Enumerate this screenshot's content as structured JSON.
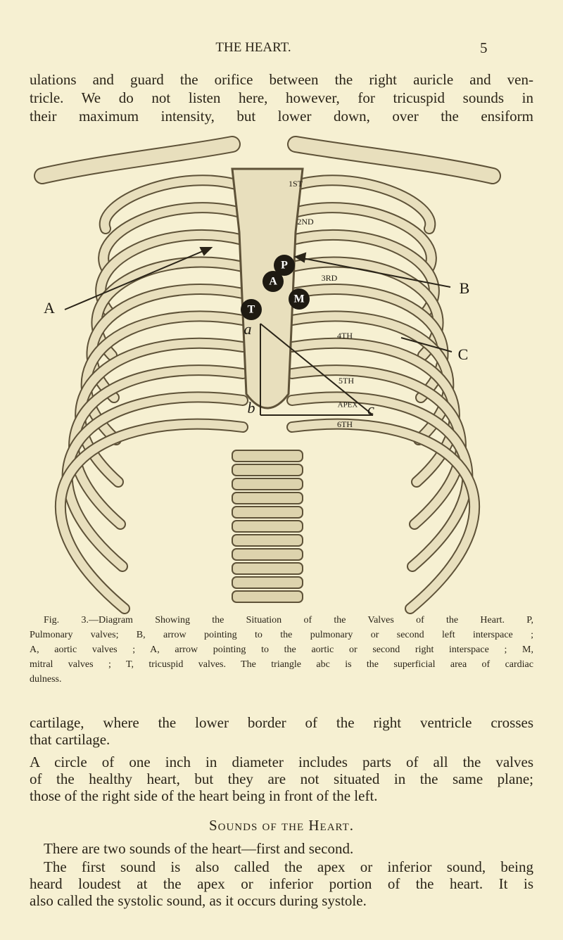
{
  "header": {
    "title": "THE HEART.",
    "page_number": "5"
  },
  "text_top": [
    "ulations and guard the orifice between the right auricle and ven-",
    "tricle. We do not listen here, however, for tricuspid sounds in",
    "their maximum intensity, but lower down, over the ensiform"
  ],
  "figure": {
    "labels": [
      "A",
      "B",
      "C",
      "P",
      "A",
      "M",
      "T",
      "a",
      "b",
      "c",
      "1ST",
      "2ND",
      "3RD",
      "4TH",
      "5TH",
      "APEX",
      "6TH"
    ],
    "caption": [
      "Fig. 3.—Diagram Showing the Situation of the Valves of the Heart. P,",
      "Pulmonary valves; B, arrow pointing to the pulmonary or second left interspace ;",
      "A, aortic valves ; A, arrow pointing to the aortic or second right interspace ; M,",
      "mitral valves ; T, tricuspid valves. The triangle abc is the superficial area of cardiac",
      "dulness."
    ]
  },
  "text_after_figure": [
    "cartilage, where the lower border of the right ventricle crosses",
    "that cartilage."
  ],
  "paragraph_2": [
    "A circle of one inch in diameter includes parts of all the valves",
    "of the healthy heart, but they are not situated in the same plane;",
    "those of the right side of the heart being in front of the left."
  ],
  "section_heading": "Sounds of the Heart.",
  "paragraph_3": [
    "There are two sounds of the heart—first and second."
  ],
  "paragraph_4": [
    "The first sound is also called the apex or inferior sound, being",
    "heard loudest at the apex or inferior portion of the heart. It is",
    "also called the systolic sound, as it occurs during systole."
  ]
}
